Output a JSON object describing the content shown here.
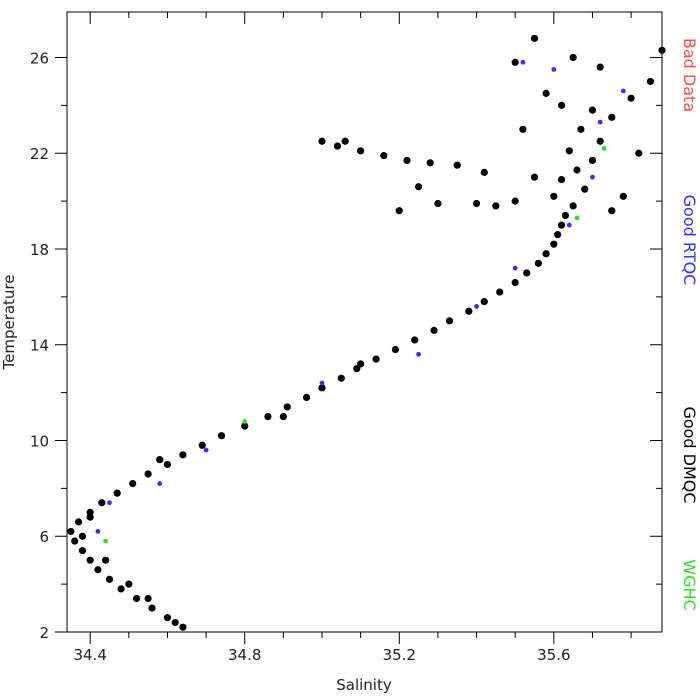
{
  "chart_data": {
    "type": "scatter",
    "x_label": "Salinity",
    "y_label": "Temperature",
    "xlim": [
      34.34,
      35.88
    ],
    "ylim": [
      2,
      27.9
    ],
    "xticks": [
      34.4,
      34.8,
      35.2,
      35.6
    ],
    "yticks": [
      2,
      6,
      10,
      14,
      18,
      22,
      26
    ],
    "x_minor_ticks": [
      34.5,
      34.6,
      34.7,
      34.9,
      35.0,
      35.1,
      35.3,
      35.4,
      35.5,
      35.7,
      35.8
    ],
    "y_minor_ticks": [
      4,
      8,
      12,
      16,
      20,
      24
    ],
    "series": [
      {
        "name": "Bad Data",
        "color": "#ff4d4d",
        "x": [],
        "values": []
      },
      {
        "name": "Good DMQC",
        "color": "#000000",
        "x": [
          34.64,
          34.6,
          34.56,
          34.52,
          34.48,
          34.45,
          34.42,
          34.4,
          34.38,
          34.36,
          34.35,
          34.37,
          34.4,
          34.43,
          34.47,
          34.51,
          34.55,
          34.6,
          34.64,
          34.69,
          34.74,
          34.8,
          34.86,
          34.91,
          34.96,
          35.0,
          35.05,
          35.09,
          35.14,
          35.19,
          35.24,
          35.29,
          35.33,
          35.38,
          35.42,
          35.46,
          35.5,
          35.53,
          35.56,
          35.58,
          35.6,
          35.61,
          35.62,
          35.63,
          35.65,
          35.6,
          35.68,
          35.62,
          35.66,
          35.7,
          35.64,
          35.72,
          35.67,
          35.75,
          35.62,
          35.8,
          35.85,
          35.88,
          35.55,
          35.5,
          35.65,
          35.72,
          35.58,
          35.52,
          35.55,
          35.5,
          35.45,
          35.4,
          35.42,
          35.35,
          35.28,
          35.22,
          35.16,
          35.1,
          35.04,
          35.0,
          35.06,
          35.2,
          35.25,
          35.3,
          35.75,
          35.78,
          35.82,
          35.7,
          34.38,
          34.4,
          34.44,
          34.5,
          34.55,
          34.62,
          34.58,
          34.9,
          35.1
        ],
        "values": [
          2.2,
          2.6,
          3.0,
          3.4,
          3.8,
          4.2,
          4.6,
          5.0,
          5.4,
          5.8,
          6.2,
          6.6,
          7.0,
          7.4,
          7.8,
          8.2,
          8.6,
          9.0,
          9.4,
          9.8,
          10.2,
          10.6,
          11.0,
          11.4,
          11.8,
          12.2,
          12.6,
          13.0,
          13.4,
          13.8,
          14.2,
          14.6,
          15.0,
          15.4,
          15.8,
          16.2,
          16.6,
          17.0,
          17.4,
          17.8,
          18.2,
          18.6,
          19.0,
          19.4,
          19.8,
          20.2,
          20.5,
          20.9,
          21.3,
          21.7,
          22.1,
          22.5,
          23.0,
          23.5,
          24.0,
          24.3,
          25.0,
          26.3,
          26.8,
          25.8,
          26.0,
          25.6,
          24.5,
          23.0,
          21.0,
          20.0,
          19.8,
          19.9,
          21.2,
          21.5,
          21.6,
          21.7,
          21.9,
          22.1,
          22.3,
          22.5,
          22.5,
          19.6,
          20.6,
          19.9,
          19.6,
          20.2,
          22.0,
          23.8,
          6.0,
          6.8,
          5.0,
          4.0,
          3.4,
          2.4,
          9.2,
          11.0,
          13.2
        ]
      },
      {
        "name": "Good RTQC",
        "color": "#3333ff",
        "x": [
          34.42,
          34.45,
          34.58,
          35.0,
          35.4,
          35.5,
          35.64,
          35.7,
          35.72,
          35.78,
          35.6,
          35.52,
          35.25,
          34.7
        ],
        "values": [
          6.2,
          7.4,
          8.2,
          12.4,
          15.6,
          17.2,
          19.0,
          21.0,
          23.3,
          24.6,
          25.5,
          25.8,
          13.6,
          9.6
        ]
      },
      {
        "name": "WGHC",
        "color": "#33dd33",
        "x": [
          34.44,
          34.8,
          35.73,
          35.66
        ],
        "values": [
          5.8,
          10.8,
          22.2,
          19.3
        ]
      }
    ]
  }
}
